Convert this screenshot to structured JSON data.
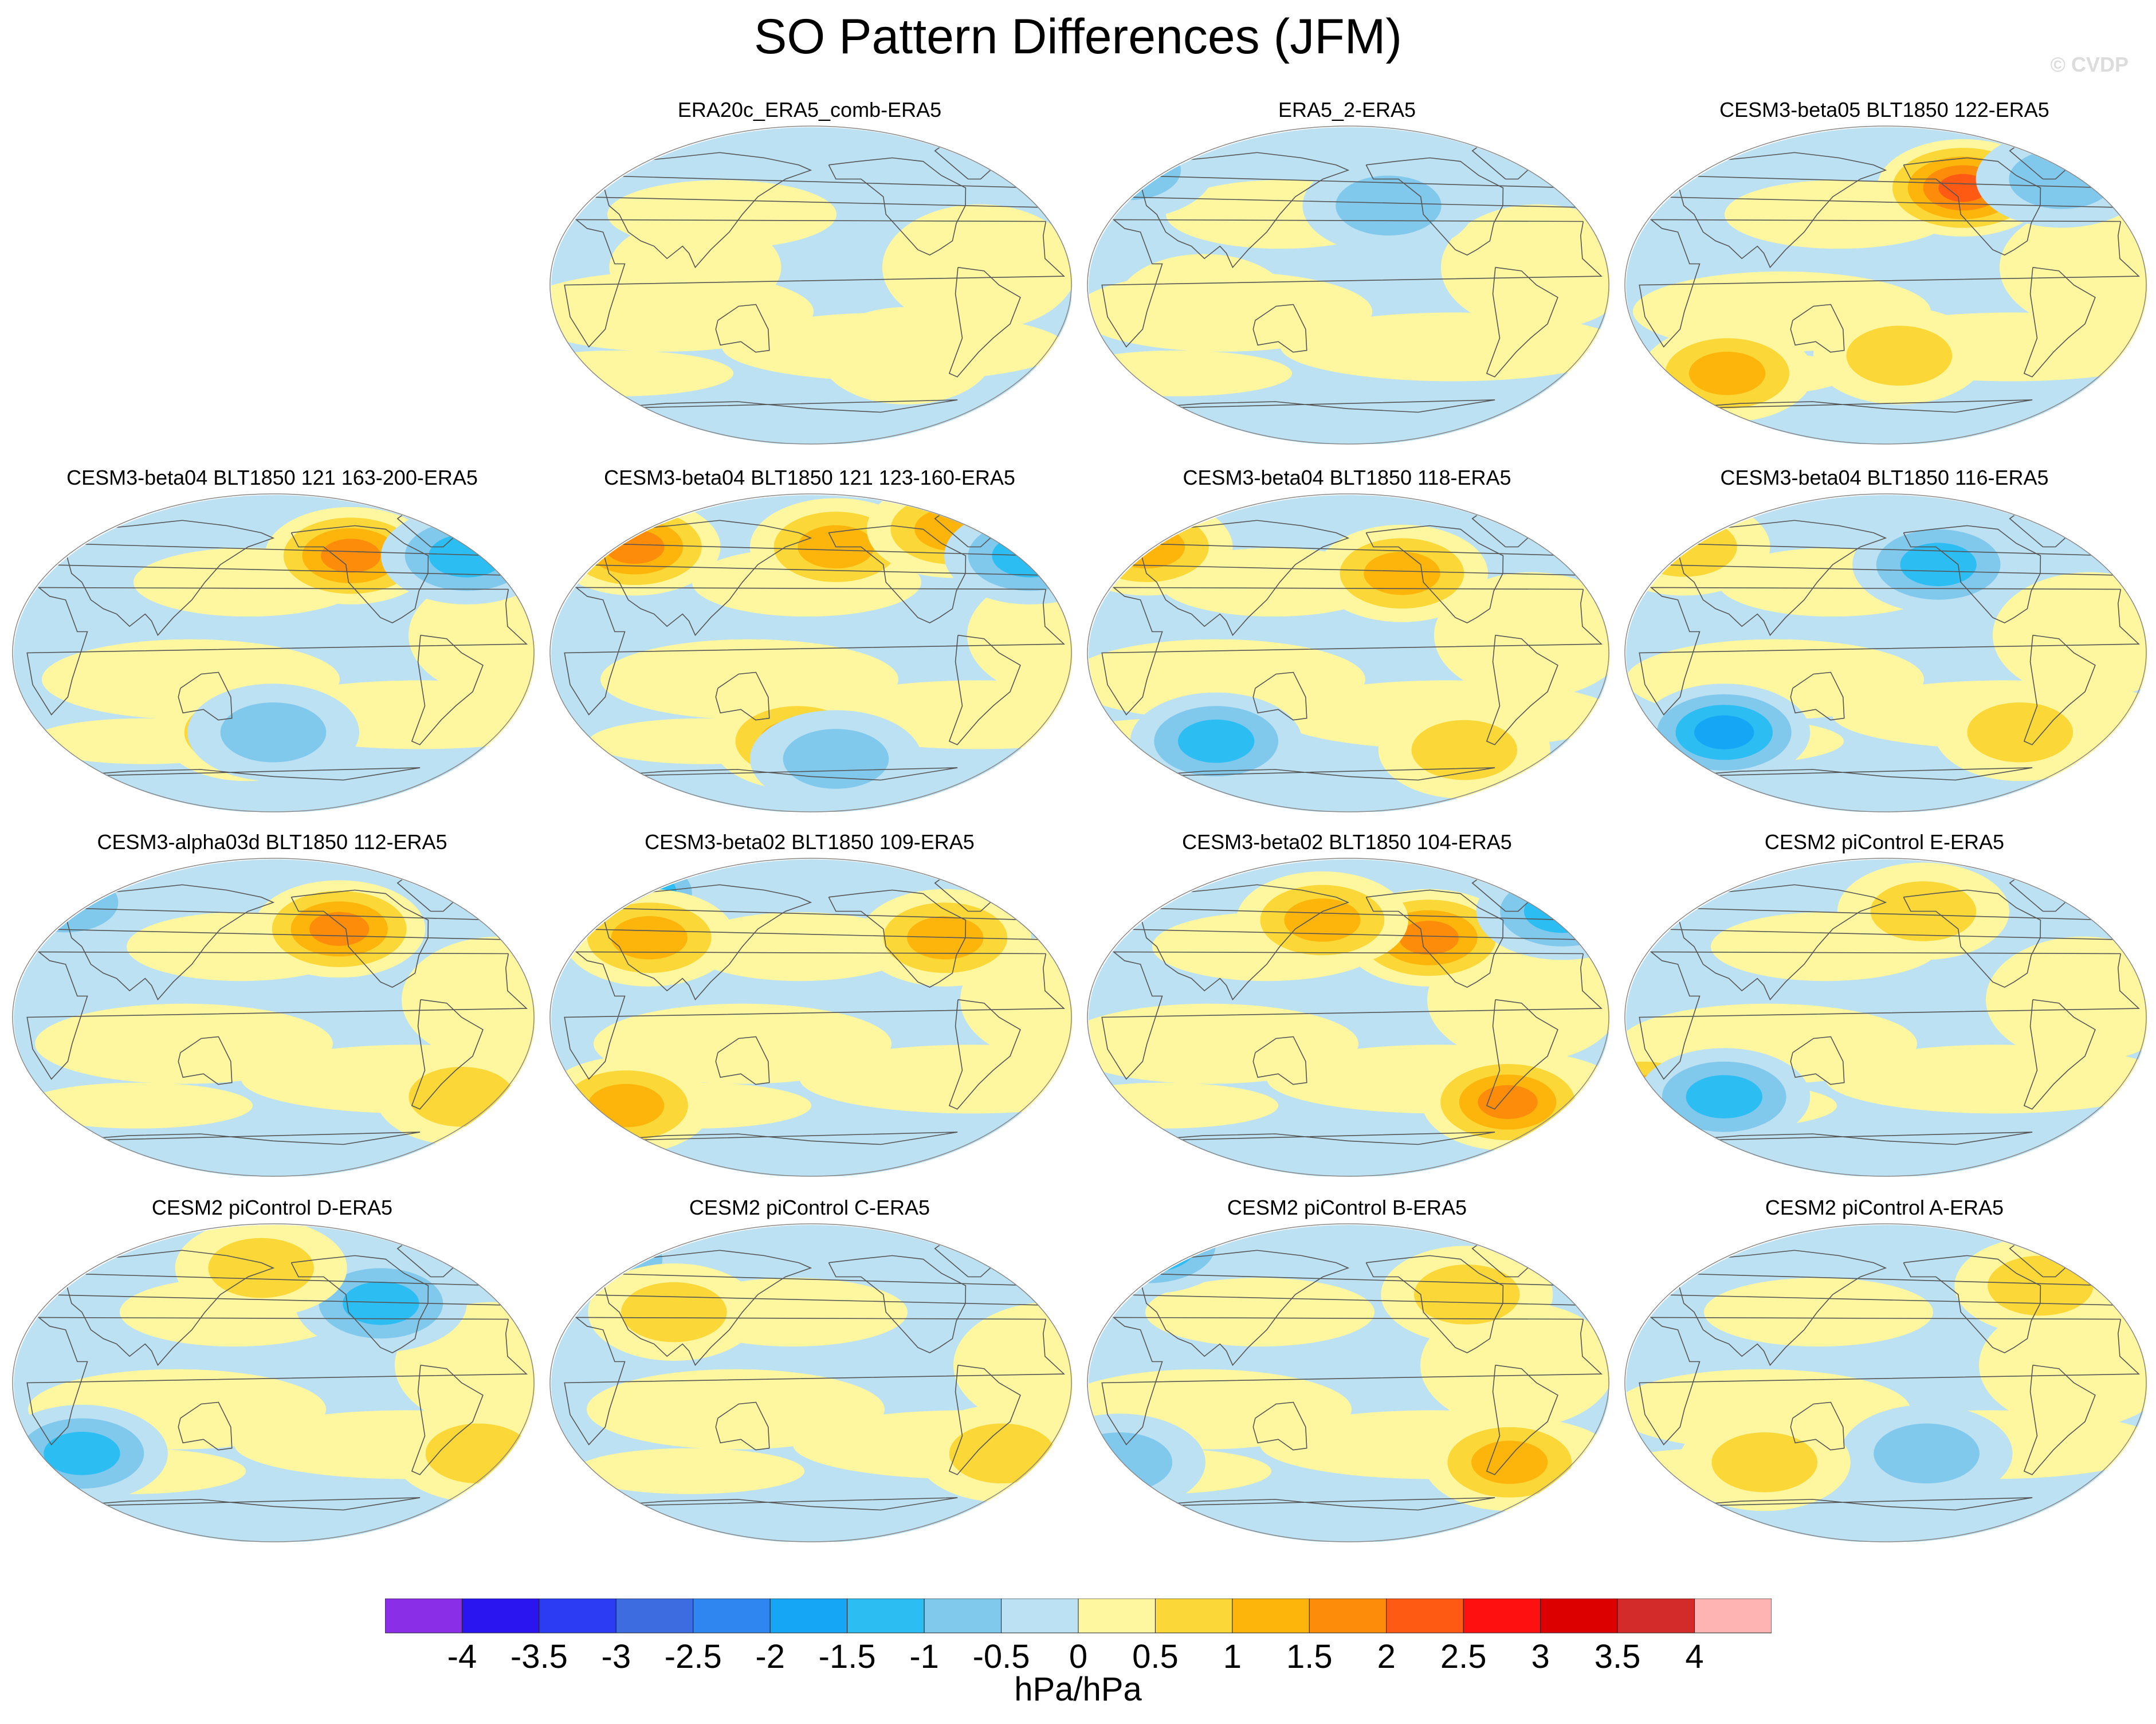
{
  "chart_data": {
    "type": "heatmap",
    "title": "SO Pattern Differences (JFM)",
    "watermark": "© CVDP",
    "units": "hPa/hPa",
    "colorbar": {
      "levels": [
        "-4",
        "-3.5",
        "-3",
        "-2.5",
        "-2",
        "-1.5",
        "-1",
        "-0.5",
        "0",
        "0.5",
        "1",
        "1.5",
        "2",
        "2.5",
        "3",
        "3.5",
        "4"
      ],
      "range": [
        -4.5,
        4.5
      ],
      "colors": [
        "#8b2ee8",
        "#2a14f0",
        "#2b3cf2",
        "#3c6ce0",
        "#2f86f0",
        "#15a6f5",
        "#2cbdf2",
        "#80c8ec",
        "#bce1f2",
        "#fff7a0",
        "#fbd838",
        "#fdb50c",
        "#fd8c0a",
        "#ff5a14",
        "#ff1010",
        "#dc0000",
        "#d32a2a",
        "#ffb4b4"
      ]
    },
    "panels": [
      {
        "title": "ERA20c_ERA5_comb-ERA5",
        "features": [
          {
            "lon": 100,
            "lat": 10,
            "v": 0.3
          },
          {
            "lon": -110,
            "lat": -40,
            "v": 0.4
          }
        ]
      },
      {
        "title": "ERA5_2-ERA5",
        "features": [
          {
            "lon": 0,
            "lat": 65,
            "v": -0.7
          },
          {
            "lon": -150,
            "lat": 45,
            "v": -0.6
          },
          {
            "lon": 80,
            "lat": -10,
            "v": 0.4
          }
        ]
      },
      {
        "title": "CESM3-beta05 BLT1850 122-ERA5",
        "features": [
          {
            "lon": -120,
            "lat": 55,
            "v": 2.2
          },
          {
            "lon": -40,
            "lat": 60,
            "v": -0.9
          },
          {
            "lon": 60,
            "lat": -50,
            "v": 1.1
          },
          {
            "lon": -170,
            "lat": -40,
            "v": 0.7
          }
        ]
      },
      {
        "title": "CESM3-beta04 BLT1850 121 163-200-ERA5",
        "features": [
          {
            "lon": -120,
            "lat": 55,
            "v": 1.7
          },
          {
            "lon": -30,
            "lat": 55,
            "v": -1.3
          },
          {
            "lon": 160,
            "lat": -45,
            "v": 1.4
          },
          {
            "lon": -180,
            "lat": -45,
            "v": -0.7
          }
        ]
      },
      {
        "title": "CESM3-beta04 BLT1850 121 123-160-ERA5",
        "features": [
          {
            "lon": -160,
            "lat": 60,
            "v": 1.2
          },
          {
            "lon": -60,
            "lat": 70,
            "v": 1.4
          },
          {
            "lon": 40,
            "lat": 60,
            "v": 1.8
          },
          {
            "lon": -10,
            "lat": 55,
            "v": -1.2
          },
          {
            "lon": 170,
            "lat": -50,
            "v": 1.1
          },
          {
            "lon": -160,
            "lat": -60,
            "v": -0.8
          }
        ]
      },
      {
        "title": "CESM3-beta04 BLT1850 118-ERA5",
        "features": [
          {
            "lon": -140,
            "lat": 45,
            "v": 1.3
          },
          {
            "lon": 20,
            "lat": 60,
            "v": 1.1
          },
          {
            "lon": 80,
            "lat": -50,
            "v": -1.3
          },
          {
            "lon": -90,
            "lat": -55,
            "v": 0.6
          }
        ]
      },
      {
        "title": "CESM3-beta04 BLT1850 116-ERA5",
        "features": [
          {
            "lon": -140,
            "lat": 50,
            "v": -1.4
          },
          {
            "lon": 20,
            "lat": 60,
            "v": 0.8
          },
          {
            "lon": 60,
            "lat": -45,
            "v": -1.6
          },
          {
            "lon": -80,
            "lat": -45,
            "v": 0.9
          }
        ]
      },
      {
        "title": "CESM3-alpha03d BLT1850 112-ERA5",
        "features": [
          {
            "lon": -130,
            "lat": 50,
            "v": 1.8
          },
          {
            "lon": 10,
            "lat": 65,
            "v": -0.8
          },
          {
            "lon": -40,
            "lat": -45,
            "v": 0.7
          }
        ]
      },
      {
        "title": "CESM3-beta02 BLT1850 109-ERA5",
        "features": [
          {
            "lon": 20,
            "lat": 70,
            "v": -2.3
          },
          {
            "lon": -80,
            "lat": 45,
            "v": 1.1
          },
          {
            "lon": 60,
            "lat": 45,
            "v": 1.2
          },
          {
            "lon": 40,
            "lat": -50,
            "v": 1.2
          }
        ]
      },
      {
        "title": "CESM3-beta02 BLT1850 104-ERA5",
        "features": [
          {
            "lon": -120,
            "lat": 45,
            "v": 1.8
          },
          {
            "lon": 160,
            "lat": 55,
            "v": 1.2
          },
          {
            "lon": -10,
            "lat": 60,
            "v": -1.2
          },
          {
            "lon": -60,
            "lat": -48,
            "v": 1.7
          }
        ]
      },
      {
        "title": "CESM2 piControl E-ERA5",
        "features": [
          {
            "lon": -150,
            "lat": 60,
            "v": 0.9
          },
          {
            "lon": 0,
            "lat": -45,
            "v": 1.3
          },
          {
            "lon": 60,
            "lat": -45,
            "v": -1.4
          }
        ]
      },
      {
        "title": "CESM2 piControl D-ERA5",
        "features": [
          {
            "lon": -100,
            "lat": 45,
            "v": -1.4
          },
          {
            "lon": 170,
            "lat": 65,
            "v": 0.9
          },
          {
            "lon": 40,
            "lat": -40,
            "v": -1.3
          },
          {
            "lon": -30,
            "lat": -40,
            "v": 1.0
          }
        ]
      },
      {
        "title": "CESM2 piControl C-ERA5",
        "features": [
          {
            "lon": 10,
            "lat": 70,
            "v": -1.0
          },
          {
            "lon": 80,
            "lat": 40,
            "v": 0.9
          },
          {
            "lon": -40,
            "lat": -40,
            "v": 0.7
          }
        ]
      },
      {
        "title": "CESM2 piControl B-ERA5",
        "features": [
          {
            "lon": 0,
            "lat": 78,
            "v": -1.6
          },
          {
            "lon": -90,
            "lat": 50,
            "v": 0.9
          },
          {
            "lon": -60,
            "lat": -45,
            "v": 1.1
          },
          {
            "lon": 10,
            "lat": -45,
            "v": -0.9
          }
        ]
      },
      {
        "title": "CESM2 piControl A-ERA5",
        "features": [
          {
            "lon": -60,
            "lat": 55,
            "v": 0.9
          },
          {
            "lon": -150,
            "lat": -40,
            "v": -0.9
          },
          {
            "lon": 90,
            "lat": -45,
            "v": 0.8
          }
        ]
      }
    ]
  }
}
